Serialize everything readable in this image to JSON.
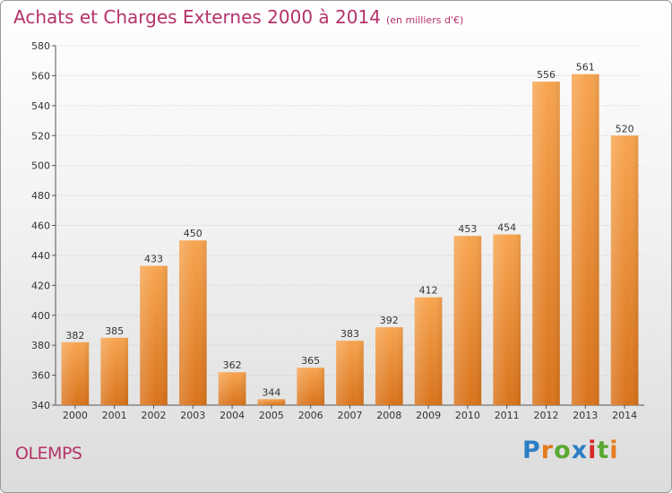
{
  "header": {
    "title": "Achats et Charges Externes 2000 à 2014",
    "subtitle": "(en milliers d'€)"
  },
  "footer": {
    "town": "OLEMPS",
    "logo_letters": [
      {
        "char": "P",
        "color": "#2b7fc4"
      },
      {
        "char": "r",
        "color": "#e57b1c"
      },
      {
        "char": "o",
        "color": "#5aa832"
      },
      {
        "char": "x",
        "color": "#2b7fc4"
      },
      {
        "char": "i",
        "color": "#d62a2a"
      },
      {
        "char": "t",
        "color": "#5aa832"
      },
      {
        "char": "i",
        "color": "#e57b1c"
      }
    ]
  },
  "chart_data": {
    "type": "bar",
    "categories": [
      "2000",
      "2001",
      "2002",
      "2003",
      "2004",
      "2005",
      "2006",
      "2007",
      "2008",
      "2009",
      "2010",
      "2011",
      "2012",
      "2013",
      "2014"
    ],
    "values": [
      382,
      385,
      433,
      450,
      362,
      344,
      365,
      383,
      392,
      412,
      453,
      454,
      556,
      561,
      520
    ],
    "ylim": [
      340,
      580
    ],
    "yticks": [
      340,
      360,
      380,
      400,
      420,
      440,
      460,
      480,
      500,
      520,
      540,
      560,
      580
    ],
    "grid": true,
    "bar_color_top": "#f7a44f",
    "bar_color_bottom": "#d9731b"
  }
}
